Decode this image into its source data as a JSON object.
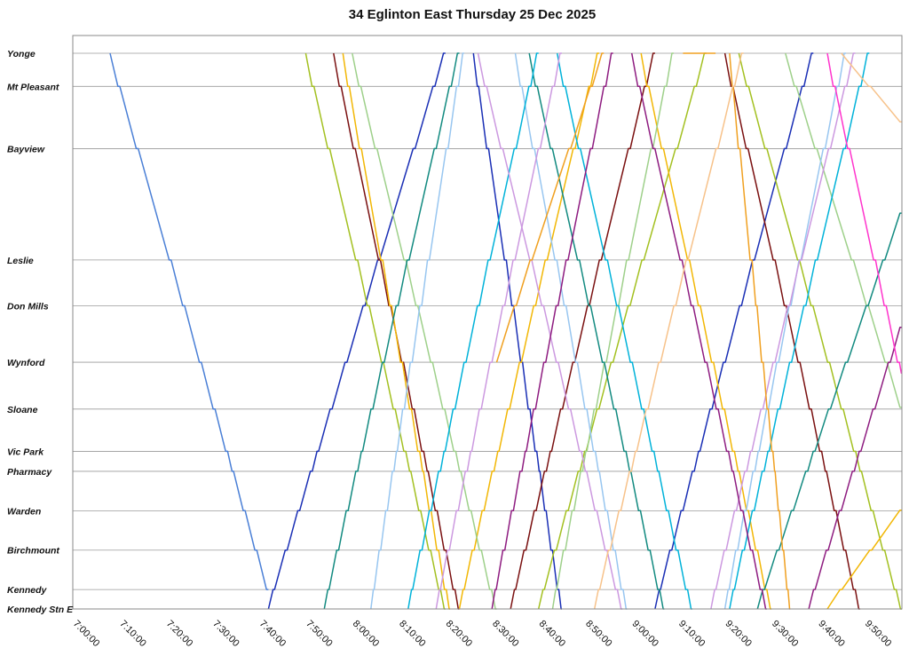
{
  "chart_data": {
    "type": "line",
    "title": "34 Eglinton East Thursday 25 Dec 2025",
    "xlabel": "",
    "ylabel": "",
    "x_ticks": [
      "7:00:00",
      "7:10:00",
      "7:20:00",
      "7:30:00",
      "7:40:00",
      "7:50:00",
      "8:00:00",
      "8:10:00",
      "8:20:00",
      "8:30:00",
      "8:40:00",
      "8:50:00",
      "9:00:00",
      "9:10:00",
      "9:20:00",
      "9:30:00",
      "9:40:00",
      "9:50:00"
    ],
    "xlim": [
      "7:00:00",
      "9:58:00"
    ],
    "y_stops": [
      {
        "name": "Yonge",
        "dist": 0.0
      },
      {
        "name": "Mt Pleasant",
        "dist": 0.058
      },
      {
        "name": "Bayview",
        "dist": 0.167
      },
      {
        "name": "Leslie",
        "dist": 0.362
      },
      {
        "name": "Don Mills",
        "dist": 0.442
      },
      {
        "name": "Wynford",
        "dist": 0.541
      },
      {
        "name": "Sloane",
        "dist": 0.623
      },
      {
        "name": "Vic Park",
        "dist": 0.697
      },
      {
        "name": "Pharmacy",
        "dist": 0.732
      },
      {
        "name": "Warden",
        "dist": 0.801
      },
      {
        "name": "Birchmount",
        "dist": 0.87
      },
      {
        "name": "Kennedy",
        "dist": 0.939
      },
      {
        "name": "Kennedy Stn E",
        "dist": 0.973
      }
    ],
    "grid": true,
    "legend": "none",
    "series": [
      {
        "color": "#4a7fd6",
        "trips": [
          [
            "7:08",
            0.0,
            "7:42",
            0.939
          ]
        ]
      },
      {
        "color": "#1a2fb5",
        "trips": [
          [
            "7:42",
            0.973,
            "8:20",
            0.0
          ],
          [
            "8:26",
            0.0,
            "8:45",
            0.973
          ],
          [
            "9:05",
            0.973,
            "9:39",
            0.0
          ]
        ]
      },
      {
        "color": "#a3c020",
        "trips": [
          [
            "7:50",
            0.0,
            "8:20",
            0.973
          ],
          [
            "8:40",
            0.973,
            "9:16",
            0.0
          ],
          [
            "9:23",
            0.0,
            "9:58",
            0.973
          ]
        ]
      },
      {
        "color": "#7a1010",
        "trips": [
          [
            "7:56",
            0.0,
            "8:23",
            0.973
          ],
          [
            "8:34",
            0.973,
            "9:05",
            0.0
          ],
          [
            "9:20",
            0.0,
            "9:49",
            0.973
          ]
        ]
      },
      {
        "color": "#f2b705",
        "trips": [
          [
            "7:58",
            0.0,
            "8:21",
            0.973
          ],
          [
            "8:23",
            0.973,
            "8:53",
            0.0
          ],
          [
            "9:02",
            0.0,
            "9:30",
            0.973
          ],
          [
            "9:42",
            0.973,
            "9:58",
            0.8
          ]
        ]
      },
      {
        "color": "#9ed08a",
        "trips": [
          [
            "8:00",
            0.0,
            "8:31",
            0.973
          ],
          [
            "8:43",
            0.973,
            "9:09",
            0.0
          ],
          [
            "9:33",
            0.0,
            "9:58",
            0.62
          ]
        ]
      },
      {
        "color": "#128a80",
        "trips": [
          [
            "7:54",
            0.973,
            "8:23",
            0.0
          ],
          [
            "8:38",
            0.0,
            "9:07",
            0.973
          ],
          [
            "9:27",
            0.973,
            "9:58",
            0.28
          ]
        ]
      },
      {
        "color": "#98c6f0",
        "trips": [
          [
            "8:04",
            0.973,
            "8:24",
            0.0
          ],
          [
            "8:35",
            0.0,
            "8:59",
            0.973
          ],
          [
            "9:20",
            0.973,
            "9:46",
            0.0
          ]
        ]
      },
      {
        "color": "#00b2d9",
        "trips": [
          [
            "8:12",
            0.973,
            "8:40",
            0.0
          ],
          [
            "8:44",
            0.0,
            "9:13",
            0.973
          ],
          [
            "9:21",
            0.973,
            "9:51",
            0.0
          ]
        ]
      },
      {
        "color": "#cc99e0",
        "trips": [
          [
            "8:18",
            0.973,
            "8:45",
            0.0
          ],
          [
            "8:27",
            0.0,
            "8:58",
            0.973
          ],
          [
            "9:17",
            0.973,
            "9:48",
            0.0
          ]
        ]
      },
      {
        "color": "#8e1c80",
        "trips": [
          [
            "8:30",
            0.973,
            "8:56",
            0.0
          ],
          [
            "9:00",
            0.0,
            "9:29",
            0.973
          ],
          [
            "9:38",
            0.973,
            "9:58",
            0.48
          ]
        ]
      },
      {
        "color": "#f0a020",
        "trips": [
          [
            "8:31",
            0.541,
            "8:54",
            0.0
          ],
          [
            "9:11",
            0.0,
            "9:18",
            0.0
          ],
          [
            "9:21",
            0.0,
            "9:34",
            0.973
          ]
        ]
      },
      {
        "color": "#f7c28a",
        "trips": [
          [
            "8:52",
            0.973,
            "9:24",
            0.0
          ],
          [
            "9:45",
            0.0,
            "9:58",
            0.12
          ]
        ]
      },
      {
        "color": "#ff33cc",
        "trips": [
          [
            "9:42",
            0.0,
            "9:58",
            0.56
          ]
        ]
      }
    ]
  }
}
